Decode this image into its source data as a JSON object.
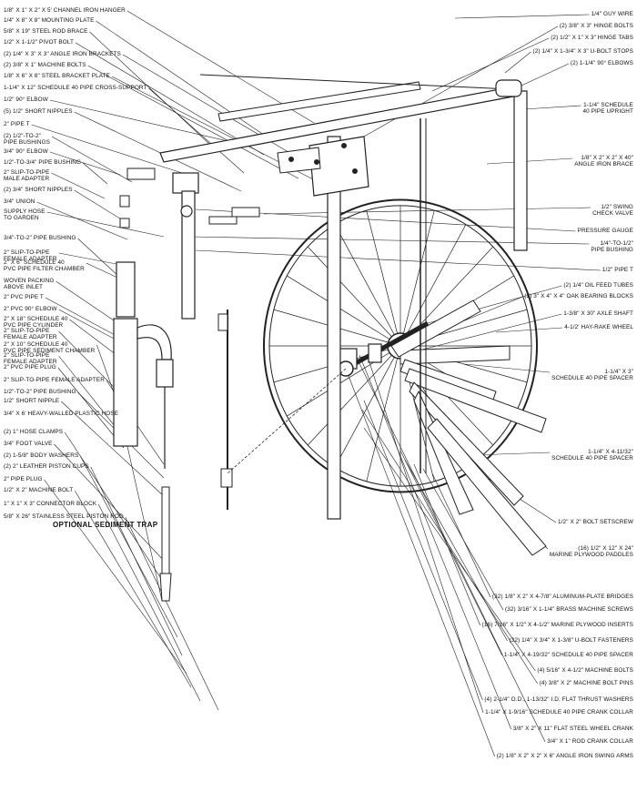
{
  "labels_left": [
    {
      "id": "l1",
      "text": "1/8\" X 1\" X 2\" X 5' CHANNEL IRON HANGER"
    },
    {
      "id": "l2",
      "text": "1/4\" X 8\" X 8\" MOUNTING PLATE"
    },
    {
      "id": "l3",
      "text": "5/8\" X 19\" STEEL ROD BRACE"
    },
    {
      "id": "l4",
      "text": "1/2\" X 1-1/2\" PIVOT BOLT"
    },
    {
      "id": "l5",
      "text": "(2) 1/4\" X 3\" X 3\" ANGLE IRON BRACKETS"
    },
    {
      "id": "l6",
      "text": "(2) 3/8\" X 1\" MACHINE BOLTS"
    },
    {
      "id": "l7",
      "text": "1/8\" X 6\" X 8\" STEEL BRACKET PLATE"
    },
    {
      "id": "l8",
      "text": "1-1/4\" X 12\" SCHEDULE 40 PIPE CROSS-SUPPORT"
    },
    {
      "id": "l9",
      "text": "1/2\" 90° ELBOW"
    },
    {
      "id": "l10",
      "text": "(5) 1/2\" SHORT NIPPLES"
    },
    {
      "id": "l11",
      "text": "2\" PIPE T"
    },
    {
      "id": "l12",
      "text": "(2) 1/2\"-TO-2\"\nPIPE BUSHINGS"
    },
    {
      "id": "l13",
      "text": "3/4\" 90° ELBOW"
    },
    {
      "id": "l14",
      "text": "1/2\"-TO-3/4\" PIPE BUSHING"
    },
    {
      "id": "l15",
      "text": "2\" SLIP-TO-PIPE\nMALE ADAPTER"
    },
    {
      "id": "l16",
      "text": "(2) 3/4\" SHORT NIPPLES"
    },
    {
      "id": "l17",
      "text": "3/4\" UNION"
    },
    {
      "id": "l18",
      "text": "SUPPLY HOSE\nTO GARDEN"
    },
    {
      "id": "l19",
      "text": "3/4\"-TO-2\" PIPE BUSHING"
    },
    {
      "id": "l20",
      "text": "2\" SLIP-TO-PIPE\nFEMALE ADAPTER"
    },
    {
      "id": "l21",
      "text": "2\" X 6\" SCHEDULE 40\nPVC PIPE FILTER CHAMBER"
    },
    {
      "id": "l22",
      "text": "WOVEN PACKING\nABOVE INLET"
    },
    {
      "id": "l23",
      "text": "2\" PVC PIPE T"
    },
    {
      "id": "l24",
      "text": "2\" PVC 90° ELBOW"
    },
    {
      "id": "l25",
      "text": "2\" X 18\" SCHEDULE 40\nPVC PIPE CYLINDER"
    },
    {
      "id": "l26",
      "text": "2\" SLIP-TO-PIPE\nFEMALE ADAPTER"
    },
    {
      "id": "l27",
      "text": "2\" X 10\" SCHEDULE 40\nPVC PIPE SEDIMENT CHAMBER"
    },
    {
      "id": "l28",
      "text": "2\" SLIP-TO-PIPE\nFEMALE ADAPTER"
    },
    {
      "id": "l29",
      "text": "2\" PVC PIPE PLUG"
    },
    {
      "id": "l30",
      "text": "2\" SLIP-TO-PIPE FEMALE ADAPTER"
    },
    {
      "id": "l31",
      "text": "1/2\"-TO-2\" PIPE BUSHING"
    },
    {
      "id": "l32",
      "text": "1/2\" SHORT NIPPLE"
    },
    {
      "id": "l33",
      "text": "3/4\" X 6' HEAVY-WALLED PLASTIC HOSE"
    },
    {
      "id": "l34",
      "text": "(2) 1\" HOSE CLAMPS"
    },
    {
      "id": "l35",
      "text": "3/4\" FOOT VALVE"
    },
    {
      "id": "l36",
      "text": "(2) 1-5/8\" BODY WASHERS"
    },
    {
      "id": "l37",
      "text": "(2) 2\" LEATHER PISTON CUPS"
    },
    {
      "id": "l38",
      "text": "2\" PIPE PLUG"
    },
    {
      "id": "l39",
      "text": "1/2\" X 2\" MACHINE BOLT"
    },
    {
      "id": "l40",
      "text": "1\" X 1\" X 3\" CONNECTOR BLOCK"
    },
    {
      "id": "l41",
      "text": "5/8\" X 26\" STAINLESS STEEL PISTON ROD"
    }
  ],
  "labels_right": [
    {
      "id": "r1",
      "text": "1/4\" GUY WIRE"
    },
    {
      "id": "r2",
      "text": "(2) 3/8\" X 3\" HINGE BOLTS"
    },
    {
      "id": "r3",
      "text": "(2) 1/2\" X 1\" X 3\" HINGE TABS"
    },
    {
      "id": "r4",
      "text": "(2) 1/4\" X 1-3/4\" X 3\" U-BOLT STOPS"
    },
    {
      "id": "r5",
      "text": "(2) 1-1/4\" 90° ELBOWS"
    },
    {
      "id": "r6",
      "text": "1-1/4\" SCHEDULE\n40 PIPE UPRIGHT"
    },
    {
      "id": "r7",
      "text": "1/8\" X 2\" X 2\" X 40\"\nANGLE IRON BRACE"
    },
    {
      "id": "r8",
      "text": "1/2\" SWING\nCHECK VALVE"
    },
    {
      "id": "r9",
      "text": "PRESSURE GAUGE"
    },
    {
      "id": "r10",
      "text": "1/4\"-TO-1/2\"\nPIPE BUSHING"
    },
    {
      "id": "r11",
      "text": "1/2\" PIPE T"
    },
    {
      "id": "r12",
      "text": "(2) 1/4\" OIL FEED TUBES"
    },
    {
      "id": "r13",
      "text": "(2) 3\" X 4\" X 4\" OAK BEARING BLOCKS"
    },
    {
      "id": "r14",
      "text": "1-3/8\" X 30\" AXLE SHAFT"
    },
    {
      "id": "r15",
      "text": "4-1/2' HAY-RAKE WHEEL"
    },
    {
      "id": "r16",
      "text": "1-1/4\" X 3\"\nSCHEDULE 40 PIPE SPACER"
    },
    {
      "id": "r17",
      "text": "1-1/4\" X 4-11/32\"\nSCHEDULE 40 PIPE SPACER"
    },
    {
      "id": "r18",
      "text": "1/2\" X 2\" BOLT SETSCREW"
    },
    {
      "id": "r19",
      "text": "(16) 1/2\" X 12\" X 24\"\nMARINE PLYWOOD PADDLES"
    },
    {
      "id": "r20",
      "text": "(32) 1/8\" X 2\" X 4-7/8\" ALUMINUM-PLATE BRIDGES"
    },
    {
      "id": "r21",
      "text": "(32) 3/16\" X 1-1/4\" BRASS MACHINE SCREWS"
    },
    {
      "id": "r22",
      "text": "(16) 7/16\" X 1/2\" X 4-1/2\" MARINE PLYWOOD INSERTS"
    },
    {
      "id": "r23",
      "text": "(32) 1/4\" X 3/4\" X 1-3/8\" U-BOLT FASTENERS"
    },
    {
      "id": "r24",
      "text": "1-1/4\" X 4-19/32\" SCHEDULE 40 PIPE SPACER"
    },
    {
      "id": "r25",
      "text": "(4) 5/16\" X 4-1/2\" MACHINE BOLTS"
    },
    {
      "id": "r26",
      "text": "(4) 3/8\" X 2\" MACHINE BOLT PINS"
    },
    {
      "id": "r27",
      "text": "(4) 2-1/4\" O.D., 1-13/32\" I.D. FLAT THRUST WASHERS"
    },
    {
      "id": "r28",
      "text": "1-1/4\" X 1-9/16\" SCHEDULE 40 PIPE CRANK COLLAR"
    },
    {
      "id": "r29",
      "text": "3/8\" X 2\" X 11\" FLAT STEEL WHEEL CRANK"
    },
    {
      "id": "r30",
      "text": "3/4\" X 1\" ROD CRANK COLLAR"
    },
    {
      "id": "r31",
      "text": "(2) 1/8\" X 2\" X 2\" X 6\" ANGLE IRON SWING ARMS"
    }
  ],
  "caption": "OPTIONAL SEDIMENT TRAP"
}
